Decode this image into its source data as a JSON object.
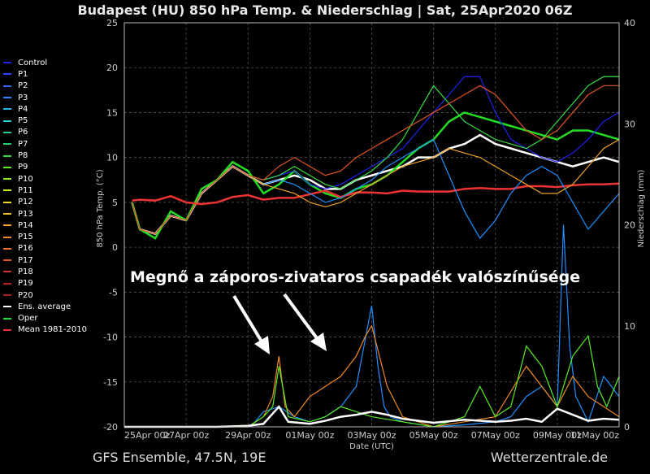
{
  "header": {
    "title": "Budapest  (HU)  850 hPa Temp. & Niederschlag | Sat, 25Apr2020 06Z"
  },
  "footer": {
    "left": "GFS Ensemble, 47.5N, 19E",
    "right": "Wetterzentrale.de"
  },
  "annotation": {
    "text": "Megnő a záporos-zivataros csapadék valószínűsége"
  },
  "legend": [
    {
      "label": "Control",
      "color": "#2222ee"
    },
    {
      "label": "P1",
      "color": "#3344ff"
    },
    {
      "label": "P2",
      "color": "#2a66ff"
    },
    {
      "label": "P3",
      "color": "#1e8fff"
    },
    {
      "label": "P4",
      "color": "#22b8ee"
    },
    {
      "label": "P5",
      "color": "#22d0d0"
    },
    {
      "label": "P6",
      "color": "#22c8a0"
    },
    {
      "label": "P7",
      "color": "#22cc77"
    },
    {
      "label": "P8",
      "color": "#33dd44"
    },
    {
      "label": "P9",
      "color": "#55ee22"
    },
    {
      "label": "P10",
      "color": "#88ee22"
    },
    {
      "label": "P11",
      "color": "#ccee22"
    },
    {
      "label": "P12",
      "color": "#eedd22"
    },
    {
      "label": "P13",
      "color": "#eec022"
    },
    {
      "label": "P14",
      "color": "#eea022"
    },
    {
      "label": "P15",
      "color": "#ee8822"
    },
    {
      "label": "P16",
      "color": "#ee7022"
    },
    {
      "label": "P17",
      "color": "#e05522"
    },
    {
      "label": "P18",
      "color": "#cc3322"
    },
    {
      "label": "P19",
      "color": "#bb2222"
    },
    {
      "label": "P20",
      "color": "#aa2222"
    },
    {
      "label": "Ens. average",
      "color": "#ffffff"
    },
    {
      "label": "Oper",
      "color": "#22dd22"
    },
    {
      "label": "Mean 1981-2010",
      "color": "#ee3333"
    }
  ],
  "chart_data": {
    "type": "line",
    "title": "Budapest  (HU)  850 hPa Temp. & Niederschlag | Sat, 25Apr2020 06Z",
    "xlabel": "Date (UTC)",
    "ylabel": "850 hPa Temp. (°C)",
    "y2label": "Niederschlag (mm)",
    "xlim": [
      0,
      16
    ],
    "ylim": [
      -20,
      25
    ],
    "y2lim": [
      0,
      40
    ],
    "x_ticks": [
      {
        "x": 0,
        "label": "25Apr 00z"
      },
      {
        "x": 2,
        "label": "27Apr 00z"
      },
      {
        "x": 4,
        "label": "29Apr 00z"
      },
      {
        "x": 6,
        "label": "01May 00z"
      },
      {
        "x": 8,
        "label": "03May 00z"
      },
      {
        "x": 10,
        "label": "05May 00z"
      },
      {
        "x": 12,
        "label": "07May 00z"
      },
      {
        "x": 14,
        "label": "09May 00z"
      },
      {
        "x": 16,
        "label": "11May 00z"
      }
    ],
    "y_ticks": [
      25,
      20,
      15,
      10,
      5,
      0,
      -5,
      -10,
      -15,
      -20
    ],
    "y2_ticks": [
      40,
      30,
      20,
      10,
      0
    ],
    "grid": true,
    "temperature_series": [
      {
        "name": "Ens. average",
        "color": "#ffffff",
        "x": [
          0.25,
          0.5,
          1,
          1.5,
          2,
          2.5,
          3,
          3.5,
          4,
          4.5,
          5,
          5.5,
          6,
          6.5,
          7,
          7.5,
          8,
          8.5,
          9,
          9.5,
          10,
          10.5,
          11,
          11.5,
          12,
          12.5,
          13,
          13.5,
          14,
          14.5,
          15,
          15.5,
          16
        ],
        "y": [
          5,
          2,
          1.5,
          3.5,
          3,
          6,
          7.5,
          9,
          8,
          7,
          7.5,
          8,
          7.5,
          6.5,
          6.5,
          7.5,
          8,
          8.5,
          9,
          10,
          10,
          11,
          11.5,
          12.5,
          11.5,
          11,
          10.5,
          10,
          9.5,
          9,
          9.5,
          10,
          9.5
        ]
      },
      {
        "name": "Oper",
        "color": "#22dd22",
        "x": [
          0.25,
          0.5,
          1,
          1.5,
          2,
          2.5,
          3,
          3.5,
          4,
          4.5,
          5,
          5.5,
          6,
          6.5,
          7,
          7.5,
          8,
          8.5,
          9,
          9.5,
          10,
          10.5,
          11,
          11.5,
          12,
          12.5,
          13,
          13.5,
          14,
          14.5,
          15,
          15.5,
          16
        ],
        "y": [
          5,
          2,
          1,
          4,
          3,
          6.5,
          7.5,
          9.5,
          8.5,
          6,
          7,
          8.5,
          7,
          6,
          5.5,
          6.5,
          7,
          8,
          9.5,
          11,
          12,
          14,
          15,
          14.5,
          14,
          13.5,
          13,
          12.5,
          12,
          13,
          13,
          12.5,
          12
        ]
      },
      {
        "name": "Mean 1981-2010",
        "color": "#ee3333",
        "x": [
          0.25,
          0.5,
          1,
          1.5,
          2,
          2.5,
          3,
          3.5,
          4,
          4.5,
          5,
          5.5,
          6,
          6.5,
          7,
          7.5,
          8,
          8.5,
          9,
          9.5,
          10,
          10.5,
          11,
          11.5,
          12,
          12.5,
          13,
          13.5,
          14,
          14.5,
          15,
          15.5,
          16
        ],
        "y": [
          5.2,
          5.3,
          5.2,
          5.7,
          5,
          4.8,
          5,
          5.6,
          5.8,
          5.3,
          5.5,
          5.5,
          5.9,
          6.3,
          5.6,
          6.1,
          6.1,
          6,
          6.3,
          6.2,
          6.2,
          6.2,
          6.5,
          6.6,
          6.5,
          6.5,
          6.8,
          6.8,
          6.7,
          6.9,
          7,
          7,
          7.1
        ]
      },
      {
        "name": "Control",
        "color": "#2222ee",
        "x": [
          0.25,
          0.5,
          1,
          1.5,
          2,
          2.5,
          3,
          3.5,
          4,
          4.5,
          5,
          5.5,
          6,
          6.5,
          7,
          7.5,
          8,
          8.5,
          9,
          9.5,
          10,
          10.5,
          11,
          11.5,
          12,
          12.5,
          13,
          13.5,
          14,
          14.5,
          15,
          15.5,
          16
        ],
        "y": [
          5,
          2,
          1.5,
          3.5,
          3,
          6,
          7.5,
          9,
          8,
          7.5,
          8,
          8.5,
          7,
          6.5,
          7,
          8,
          9,
          10,
          11,
          13,
          15,
          17,
          19,
          19,
          15,
          12,
          11,
          10,
          9.5,
          10.5,
          12,
          14,
          15
        ]
      },
      {
        "name": "P3",
        "color": "#1e8fff",
        "x": [
          0.25,
          0.5,
          1,
          1.5,
          2,
          2.5,
          3,
          3.5,
          4,
          4.5,
          5,
          5.5,
          6,
          6.5,
          7,
          7.5,
          8,
          8.5,
          9,
          9.5,
          10,
          10.5,
          11,
          11.5,
          12,
          12.5,
          13,
          13.5,
          14,
          14.5,
          15,
          15.5,
          16
        ],
        "y": [
          5,
          2,
          1.5,
          3.5,
          3,
          6,
          7.5,
          9,
          8,
          7,
          7.5,
          7,
          6,
          5,
          5.5,
          6.5,
          7.5,
          9,
          10,
          11,
          12,
          8,
          4,
          1,
          3,
          6,
          8,
          9,
          8,
          5,
          2,
          4,
          6
        ]
      },
      {
        "name": "P8",
        "color": "#33dd44",
        "x": [
          0.25,
          0.5,
          1,
          1.5,
          2,
          2.5,
          3,
          3.5,
          4,
          4.5,
          5,
          5.5,
          6,
          6.5,
          7,
          7.5,
          8,
          8.5,
          9,
          9.5,
          10,
          10.5,
          11,
          11.5,
          12,
          12.5,
          13,
          13.5,
          14,
          14.5,
          15,
          15.5,
          16
        ],
        "y": [
          5,
          2,
          1.5,
          3.5,
          3,
          6,
          7.5,
          9,
          8,
          7.5,
          8,
          9,
          8,
          7,
          6.5,
          7.5,
          8.5,
          10,
          12,
          15,
          18,
          16,
          14,
          13,
          12,
          11.5,
          11,
          12,
          14,
          16,
          18,
          19,
          19
        ]
      },
      {
        "name": "P14",
        "color": "#eea022",
        "x": [
          0.25,
          0.5,
          1,
          1.5,
          2,
          2.5,
          3,
          3.5,
          4,
          4.5,
          5,
          5.5,
          6,
          6.5,
          7,
          7.5,
          8,
          8.5,
          9,
          9.5,
          10,
          10.5,
          11,
          11.5,
          12,
          12.5,
          13,
          13.5,
          14,
          14.5,
          15,
          15.5,
          16
        ],
        "y": [
          5,
          2,
          1.5,
          3.5,
          3,
          6,
          7.5,
          9,
          8,
          7,
          6.5,
          6,
          5,
          4.5,
          5,
          6,
          7,
          8,
          9,
          9.5,
          10,
          11,
          10.5,
          10,
          9,
          8,
          7,
          6,
          6,
          7,
          9,
          11,
          12
        ]
      },
      {
        "name": "P17",
        "color": "#e05522",
        "x": [
          0.25,
          0.5,
          1,
          1.5,
          2,
          2.5,
          3,
          3.5,
          4,
          4.5,
          5,
          5.5,
          6,
          6.5,
          7,
          7.5,
          8,
          8.5,
          9,
          9.5,
          10,
          10.5,
          11,
          11.5,
          12,
          12.5,
          13,
          13.5,
          14,
          14.5,
          15,
          15.5,
          16
        ],
        "y": [
          5,
          2,
          1.5,
          3.5,
          3,
          6,
          7.5,
          9,
          8,
          7.5,
          9,
          10,
          9,
          8,
          8.5,
          10,
          11,
          12,
          13,
          14,
          15,
          16,
          17,
          18,
          17,
          15,
          13,
          12,
          13,
          15,
          17,
          18,
          18
        ]
      }
    ],
    "precipitation_series": [
      {
        "name": "P3",
        "color": "#1e8fff",
        "x": [
          0,
          4,
          4.2,
          4.5,
          5,
          5.5,
          6,
          6.5,
          7,
          7.5,
          8,
          8.2,
          8.4,
          8.6,
          9,
          10,
          11,
          12,
          12.5,
          13,
          13.5,
          14,
          14.2,
          14.4,
          14.6,
          15,
          15.5,
          16
        ],
        "y": [
          0,
          0,
          0.4,
          1.5,
          2,
          1,
          0.5,
          1,
          2,
          4,
          12,
          6,
          2,
          1,
          0.5,
          0,
          0.2,
          0.5,
          1,
          3,
          4,
          2,
          20,
          8,
          3,
          0.5,
          5,
          3
        ]
      },
      {
        "name": "P15",
        "color": "#ee8822",
        "x": [
          0,
          4,
          4.5,
          4.8,
          5,
          5.2,
          5.5,
          6,
          6.5,
          7,
          7.5,
          7.8,
          8,
          8.5,
          9,
          10,
          11,
          12,
          13,
          14,
          14.5,
          15,
          15.5,
          16
        ],
        "y": [
          0,
          0,
          1,
          3,
          7,
          2,
          1,
          3,
          4,
          5,
          7,
          9,
          10,
          4,
          1,
          0,
          0.5,
          1,
          6,
          2,
          5,
          3,
          2,
          1
        ]
      },
      {
        "name": "P9",
        "color": "#55ee22",
        "x": [
          0,
          4,
          4.5,
          4.8,
          5,
          5.3,
          6,
          6.5,
          7,
          8,
          9,
          10,
          11,
          11.5,
          12,
          12.5,
          13,
          13.5,
          14,
          14.5,
          15,
          15.3,
          15.6,
          16
        ],
        "y": [
          0,
          0,
          1,
          2,
          6,
          1,
          0.5,
          1,
          2,
          1,
          0.5,
          0,
          1,
          4,
          1,
          2,
          8,
          6,
          2,
          7,
          9,
          4,
          2,
          5
        ]
      },
      {
        "name": "Ens. average",
        "color": "#ffffff",
        "x": [
          0,
          3,
          4,
          4.5,
          5,
          5.3,
          6,
          6.5,
          7,
          7.5,
          8,
          8.5,
          9,
          10,
          11,
          12,
          12.5,
          13,
          13.5,
          14,
          14.5,
          15,
          15.5,
          16
        ],
        "y": [
          0,
          0,
          0.1,
          0.3,
          2,
          0.5,
          0.3,
          0.6,
          1,
          1.2,
          1.5,
          1.2,
          0.8,
          0.4,
          0.7,
          0.5,
          0.6,
          0.8,
          0.5,
          1.8,
          1.2,
          0.6,
          0.8,
          0.7
        ]
      }
    ]
  }
}
